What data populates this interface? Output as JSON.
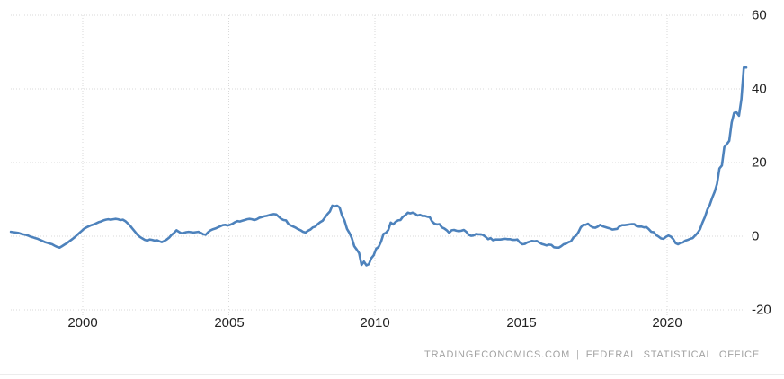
{
  "attribution": {
    "left": "TRADINGECONOMICS.COM",
    "separator": "|",
    "right": "FEDERAL STATISTICAL OFFICE"
  },
  "chart_data": {
    "type": "line",
    "title": "",
    "source": "FEDERAL STATISTICAL OFFICE",
    "watermark": "TRADINGECONOMICS.COM",
    "frequency": "monthly",
    "start": "1997-07",
    "end": "2022-09",
    "x_start_year": 1997.5417,
    "x_step_years": 0.0833333,
    "xlim": [
      1997.5,
      2022.8
    ],
    "ylim": [
      -20,
      60
    ],
    "grid": true,
    "legend": null,
    "line_color": "#4d82bc",
    "grid_color": "#dadada",
    "y_ticks": [
      60,
      40,
      20,
      0,
      -20
    ],
    "y_tick_labels": [
      "60",
      "40",
      "20",
      "0",
      "-20"
    ],
    "x_tick_years": [
      2000,
      2005,
      2010,
      2015,
      2020
    ],
    "x_tick_labels": [
      "2000",
      "2005",
      "2010",
      "2015",
      "2020"
    ],
    "values": [
      1.2,
      1.1,
      1.0,
      0.9,
      0.7,
      0.5,
      0.4,
      0.2,
      -0.1,
      -0.3,
      -0.5,
      -0.7,
      -1.0,
      -1.3,
      -1.6,
      -1.8,
      -2.0,
      -2.2,
      -2.6,
      -2.9,
      -3.1,
      -2.7,
      -2.3,
      -1.9,
      -1.4,
      -0.9,
      -0.4,
      0.2,
      0.8,
      1.4,
      2.0,
      2.4,
      2.7,
      3.0,
      3.2,
      3.5,
      3.8,
      4.0,
      4.3,
      4.5,
      4.6,
      4.5,
      4.6,
      4.7,
      4.6,
      4.4,
      4.5,
      4.1,
      3.5,
      2.8,
      2.0,
      1.2,
      0.4,
      -0.2,
      -0.6,
      -1.0,
      -1.2,
      -0.9,
      -1.0,
      -1.2,
      -1.1,
      -1.4,
      -1.6,
      -1.3,
      -0.9,
      -0.4,
      0.4,
      0.9,
      1.6,
      1.2,
      0.8,
      0.9,
      1.1,
      1.2,
      1.1,
      1.0,
      1.1,
      1.2,
      0.9,
      0.5,
      0.4,
      1.1,
      1.6,
      1.9,
      2.1,
      2.4,
      2.7,
      3.0,
      3.1,
      2.9,
      3.1,
      3.4,
      3.8,
      4.1,
      4.0,
      4.2,
      4.4,
      4.6,
      4.7,
      4.6,
      4.4,
      4.6,
      5.0,
      5.2,
      5.4,
      5.5,
      5.7,
      5.9,
      6.0,
      5.9,
      5.3,
      4.7,
      4.4,
      4.3,
      3.3,
      2.9,
      2.6,
      2.3,
      1.9,
      1.6,
      1.2,
      1.0,
      1.5,
      1.8,
      2.4,
      2.6,
      3.3,
      3.8,
      4.2,
      5.1,
      6.0,
      6.7,
      8.3,
      8.1,
      8.3,
      7.8,
      5.6,
      4.3,
      2.0,
      0.9,
      -0.5,
      -2.7,
      -3.6,
      -4.6,
      -7.8,
      -6.9,
      -7.9,
      -7.6,
      -6.0,
      -5.2,
      -3.4,
      -2.9,
      -1.5,
      0.6,
      0.9,
      1.7,
      3.7,
      3.2,
      3.9,
      4.3,
      4.4,
      5.3,
      5.7,
      6.4,
      6.2,
      6.4,
      6.1,
      5.6,
      5.8,
      5.5,
      5.5,
      5.3,
      5.2,
      4.0,
      3.4,
      3.2,
      3.3,
      2.4,
      2.1,
      1.6,
      0.9,
      1.6,
      1.7,
      1.5,
      1.4,
      1.5,
      1.7,
      1.2,
      0.4,
      0.1,
      0.2,
      0.6,
      0.5,
      0.5,
      0.3,
      -0.2,
      -0.8,
      -0.5,
      -1.1,
      -0.9,
      -0.9,
      -0.9,
      -0.8,
      -0.7,
      -0.8,
      -0.8,
      -1.0,
      -1.0,
      -0.9,
      -1.7,
      -2.2,
      -2.1,
      -1.7,
      -1.5,
      -1.3,
      -1.4,
      -1.3,
      -1.7,
      -2.1,
      -2.3,
      -2.5,
      -2.3,
      -2.4,
      -3.0,
      -3.1,
      -3.1,
      -2.7,
      -2.2,
      -2.0,
      -1.6,
      -1.4,
      -0.4,
      0.1,
      1.0,
      2.4,
      3.1,
      3.1,
      3.4,
      2.8,
      2.4,
      2.3,
      2.6,
      3.1,
      2.7,
      2.5,
      2.3,
      2.1,
      1.8,
      1.9,
      2.0,
      2.7,
      3.0,
      3.0,
      3.1,
      3.2,
      3.3,
      3.3,
      2.7,
      2.6,
      2.6,
      2.4,
      2.5,
      1.9,
      1.2,
      1.1,
      0.3,
      -0.1,
      -0.6,
      -0.7,
      -0.2,
      0.2,
      -0.1,
      -0.8,
      -1.9,
      -2.2,
      -1.8,
      -1.7,
      -1.2,
      -1.0,
      -0.7,
      -0.5,
      0.2,
      0.9,
      1.9,
      3.7,
      5.2,
      7.2,
      8.5,
      10.4,
      12.0,
      14.2,
      18.4,
      19.2,
      24.2,
      25.0,
      25.9,
      30.9,
      33.5,
      33.6,
      32.7,
      37.2,
      45.8,
      45.8
    ]
  }
}
